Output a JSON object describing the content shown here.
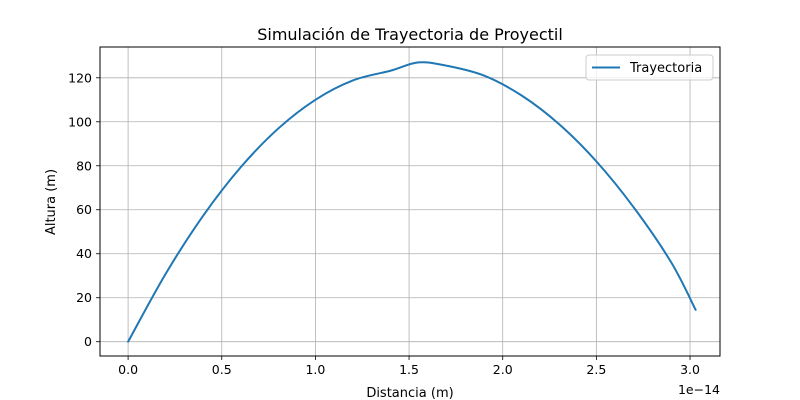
{
  "chart_data": {
    "type": "line",
    "title": "Simulación de Trayectoria de Proyectil",
    "xlabel": "Distancia (m)",
    "ylabel": "Altura (m)",
    "x_offset_label": "1e−14",
    "xlim": [
      -0.15,
      3.16
    ],
    "ylim": [
      -6.5,
      134
    ],
    "x_tick_values": [
      0.0,
      0.5,
      1.0,
      1.5,
      2.0,
      2.5,
      3.0
    ],
    "x_tick_labels": [
      "0.0",
      "0.5",
      "1.0",
      "1.5",
      "2.0",
      "2.5",
      "3.0"
    ],
    "y_tick_values": [
      0,
      20,
      40,
      60,
      80,
      100,
      120
    ],
    "y_tick_labels": [
      "0",
      "20",
      "40",
      "60",
      "80",
      "100",
      "120"
    ],
    "grid": true,
    "legend_position": "upper right",
    "series": [
      {
        "name": "Trayectoria",
        "color": "#1f77b4",
        "x": [
          0.0,
          0.2,
          0.4,
          0.6,
          0.8,
          1.0,
          1.2,
          1.4,
          1.55,
          1.7,
          1.9,
          2.1,
          2.3,
          2.5,
          2.7,
          2.9,
          3.03
        ],
        "y": [
          0.0,
          30.8,
          57.2,
          79.2,
          96.8,
          110.0,
          118.8,
          123.2,
          127.0,
          125.5,
          121.0,
          112.0,
          99.0,
          82.0,
          61.0,
          36.0,
          14.5
        ]
      }
    ]
  }
}
